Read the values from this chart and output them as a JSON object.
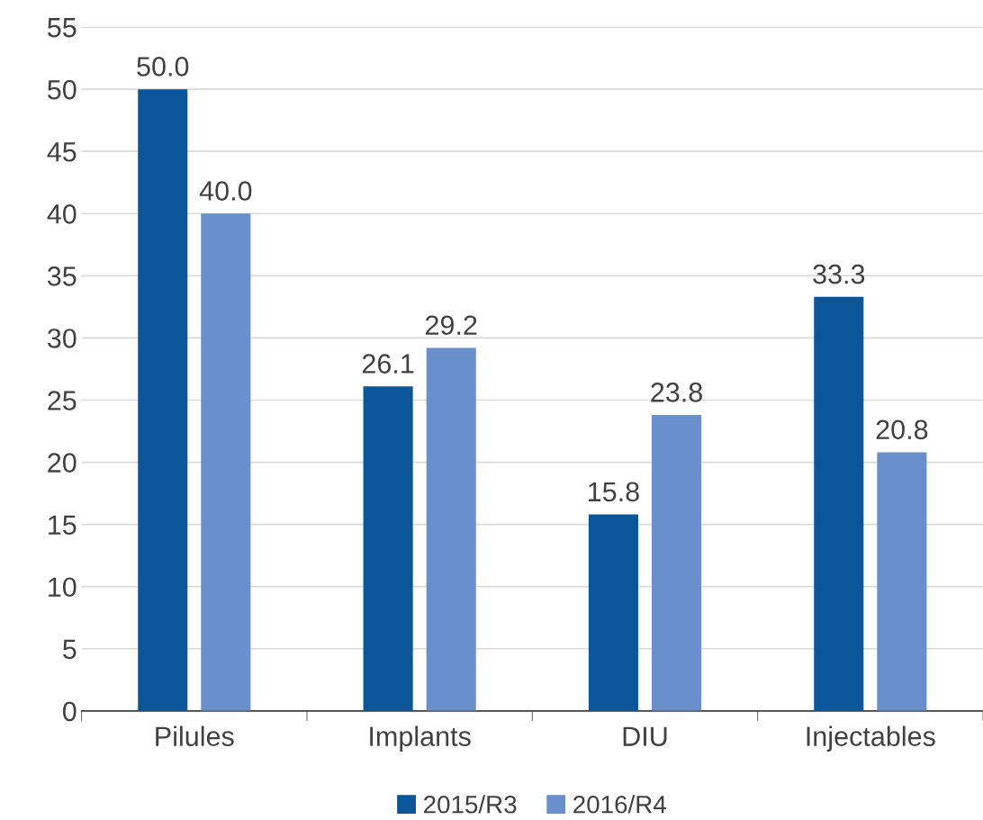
{
  "chart_data": {
    "type": "bar",
    "categories": [
      "Pilules",
      "Implants",
      "DIU",
      "Injectables"
    ],
    "series": [
      {
        "name": "2015/R3",
        "color": "#0b5599",
        "values": [
          50.0,
          26.1,
          15.8,
          33.3
        ]
      },
      {
        "name": "2016/R4",
        "color": "#6a8fcd",
        "values": [
          40.0,
          29.2,
          23.8,
          20.8
        ]
      }
    ],
    "ylim": [
      0,
      55
    ],
    "yticks": [
      0,
      5,
      10,
      15,
      20,
      25,
      30,
      35,
      40,
      45,
      50,
      55
    ],
    "value_labels": [
      [
        "50.0",
        "26.1",
        "15.8",
        "33.3"
      ],
      [
        "40.0",
        "29.2",
        "23.8",
        "20.8"
      ]
    ],
    "grid": "y",
    "legend": "bottom"
  }
}
